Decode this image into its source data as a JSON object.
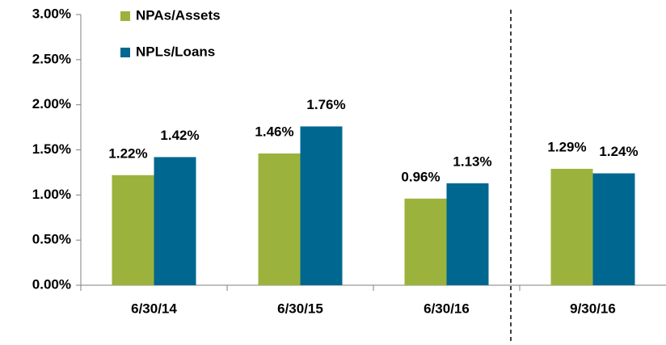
{
  "chart_data": {
    "type": "bar",
    "categories": [
      "6/30/14",
      "6/30/15",
      "6/30/16",
      "9/30/16"
    ],
    "series": [
      {
        "name": "NPAs/Assets",
        "color": "#9bb33d",
        "values": [
          1.22,
          1.46,
          0.96,
          1.29
        ],
        "value_labels": [
          "1.22%",
          "1.46%",
          "0.96%",
          "1.29%"
        ]
      },
      {
        "name": "NPLs/Loans",
        "color": "#006791",
        "values": [
          1.42,
          1.76,
          1.13,
          1.24
        ],
        "value_labels": [
          "1.42%",
          "1.76%",
          "1.13%",
          "1.24%"
        ]
      }
    ],
    "ylim": [
      0,
      3
    ],
    "yticks": [
      {
        "value": 0,
        "label": "0.00%"
      },
      {
        "value": 0.5,
        "label": "0.50%"
      },
      {
        "value": 1,
        "label": "1.00%"
      },
      {
        "value": 1.5,
        "label": "1.50%"
      },
      {
        "value": 2,
        "label": "2.00%"
      },
      {
        "value": 2.5,
        "label": "2.50%"
      },
      {
        "value": 3,
        "label": "3.00%"
      }
    ],
    "legend": "top-left",
    "grid": false
  }
}
